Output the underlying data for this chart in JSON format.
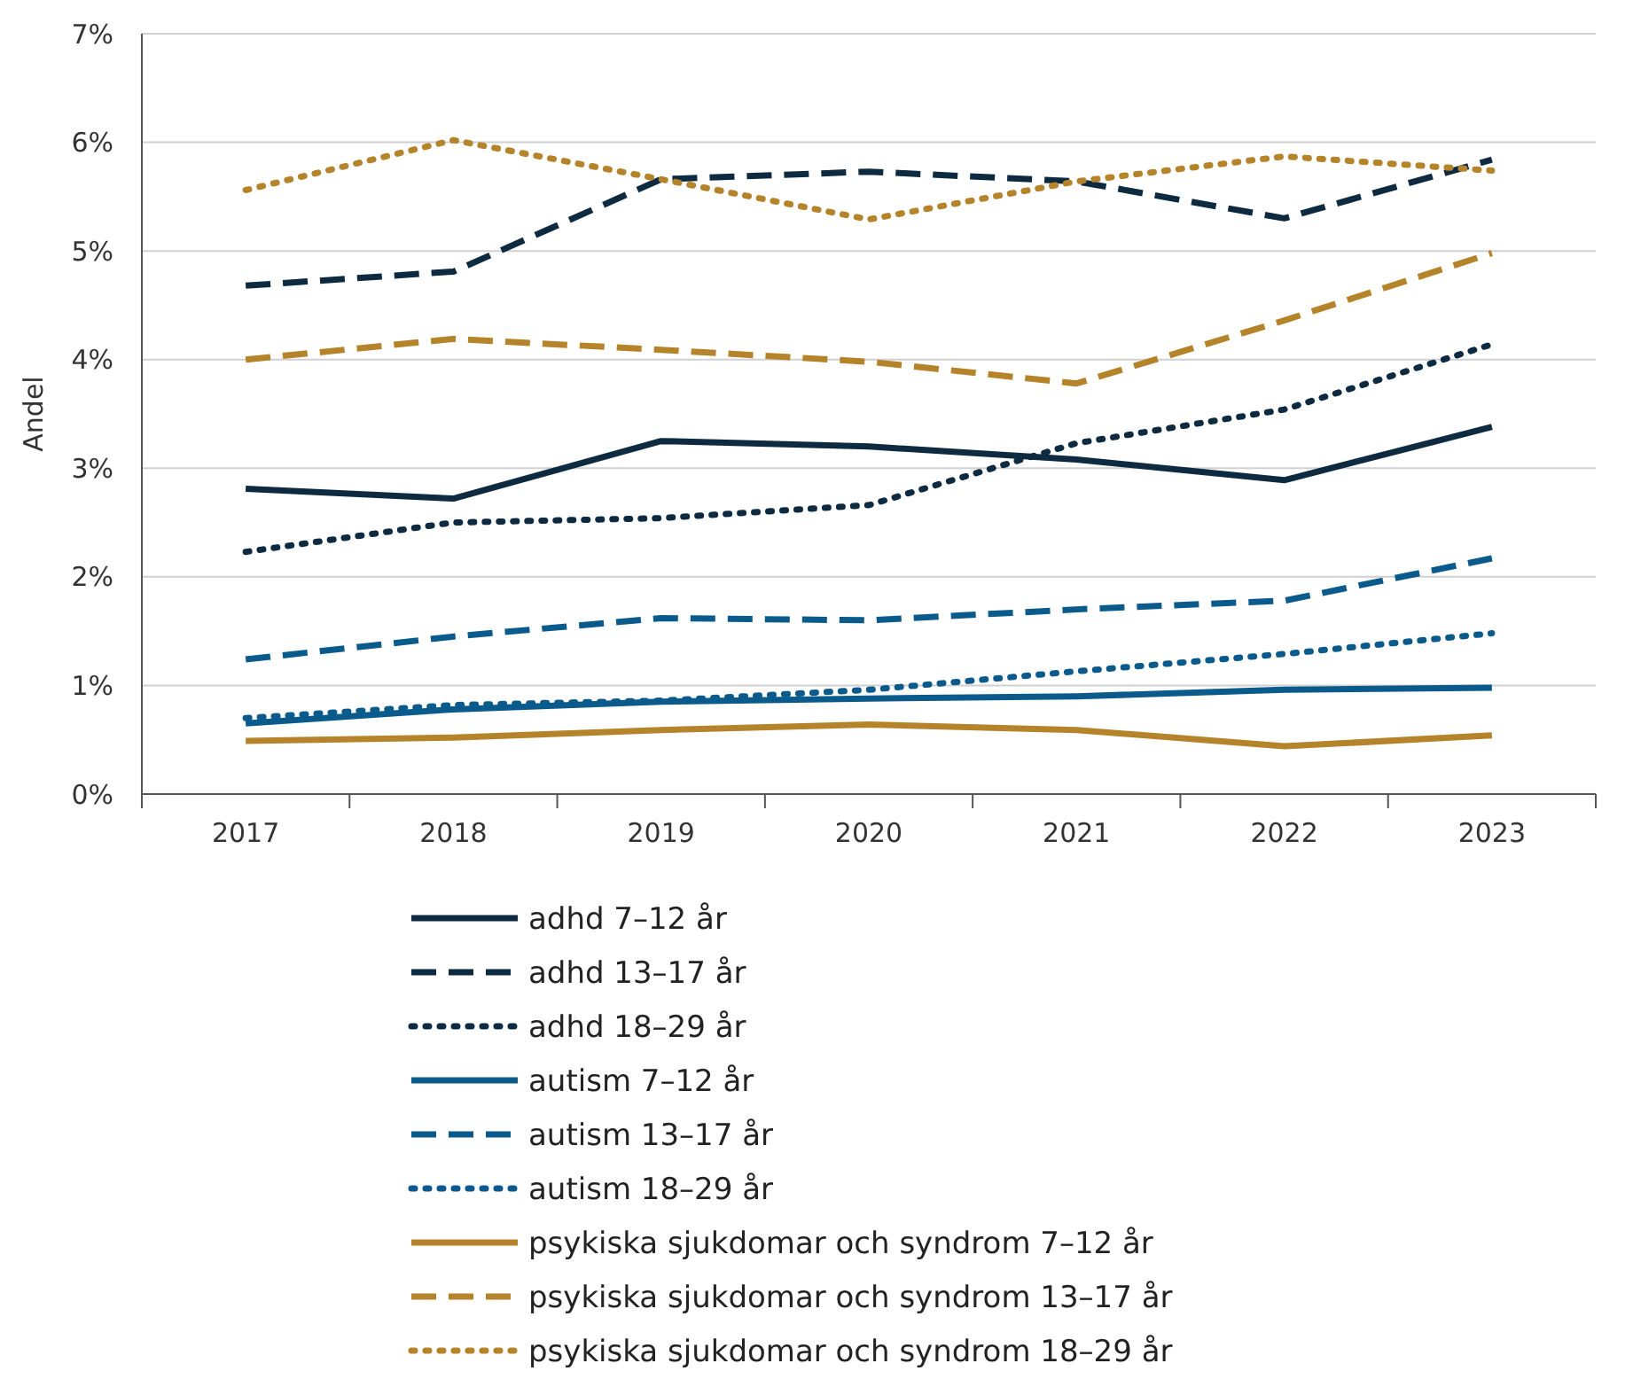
{
  "chart_data": {
    "type": "line",
    "ylabel": "Andel",
    "categories": [
      "2017",
      "2018",
      "2019",
      "2020",
      "2021",
      "2022",
      "2023"
    ],
    "ylim": [
      0,
      7
    ],
    "yticks": [
      {
        "value": 0,
        "label": "0%"
      },
      {
        "value": 1,
        "label": "1%"
      },
      {
        "value": 2,
        "label": "2%"
      },
      {
        "value": 3,
        "label": "3%"
      },
      {
        "value": 4,
        "label": "4%"
      },
      {
        "value": 5,
        "label": "5%"
      },
      {
        "value": 6,
        "label": "6%"
      },
      {
        "value": 7,
        "label": "7%"
      }
    ],
    "grid": "y",
    "legend": "bottom",
    "marker": "none",
    "series": [
      {
        "name": "adhd 7–12 år",
        "color": "#0d2a40",
        "line_style": "solid",
        "values": [
          2.81,
          2.72,
          3.25,
          3.2,
          3.08,
          2.89,
          3.38
        ]
      },
      {
        "name": "adhd 13–17 år",
        "color": "#0d2a40",
        "line_style": "dashed",
        "values": [
          4.68,
          4.81,
          5.66,
          5.73,
          5.64,
          5.3,
          5.84
        ]
      },
      {
        "name": "adhd 18–29 år",
        "color": "#0d2a40",
        "line_style": "dotted",
        "values": [
          2.23,
          2.5,
          2.54,
          2.66,
          3.23,
          3.54,
          4.14
        ]
      },
      {
        "name": "autism 7–12 år",
        "color": "#0b5a8c",
        "line_style": "solid",
        "values": [
          0.65,
          0.78,
          0.85,
          0.88,
          0.9,
          0.96,
          0.98
        ]
      },
      {
        "name": "autism 13–17 år",
        "color": "#0b5a8c",
        "line_style": "dashed",
        "values": [
          1.24,
          1.45,
          1.62,
          1.6,
          1.7,
          1.78,
          2.17
        ]
      },
      {
        "name": "autism 18–29 år",
        "color": "#0b5a8c",
        "line_style": "dotted",
        "values": [
          0.7,
          0.82,
          0.86,
          0.96,
          1.13,
          1.29,
          1.48
        ]
      },
      {
        "name": "psykiska sjukdomar och syndrom 7–12 år",
        "color": "#b5832a",
        "line_style": "solid",
        "values": [
          0.49,
          0.52,
          0.59,
          0.64,
          0.59,
          0.44,
          0.54
        ]
      },
      {
        "name": "psykiska sjukdomar och syndrom 13–17 år",
        "color": "#b5832a",
        "line_style": "dashed",
        "values": [
          4.0,
          4.19,
          4.09,
          3.98,
          3.78,
          4.36,
          4.98
        ]
      },
      {
        "name": "psykiska sjukdomar och syndrom 18–29 år",
        "color": "#b5832a",
        "line_style": "dotted",
        "values": [
          5.56,
          6.02,
          5.66,
          5.29,
          5.64,
          5.87,
          5.74
        ]
      }
    ]
  }
}
